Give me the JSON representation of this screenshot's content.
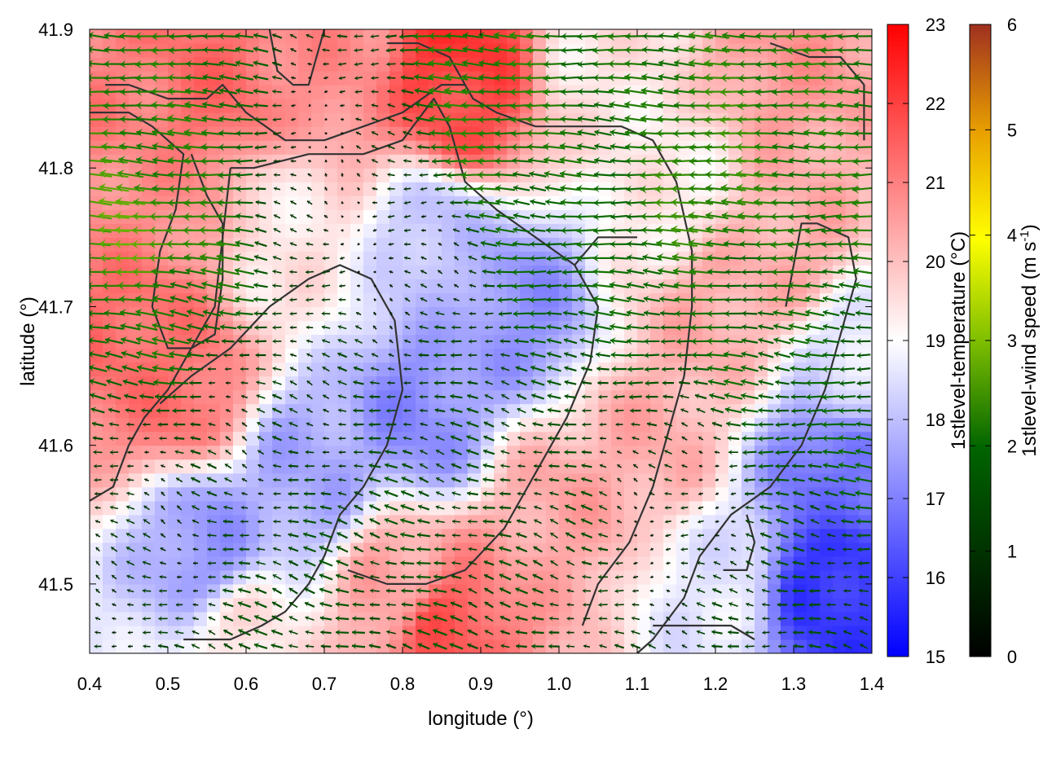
{
  "chart_data": {
    "type": "heatmap",
    "xlabel": "longitude (°)",
    "ylabel": "latitude (°)",
    "xlim": [
      0.4,
      1.4
    ],
    "ylim": [
      41.45,
      41.9
    ],
    "xticks": [
      "0.4",
      "0.5",
      "0.6",
      "0.7",
      "0.8",
      "0.9",
      "1.0",
      "1.1",
      "1.2",
      "1.3",
      "1.4"
    ],
    "yticks": [
      "41.5",
      "41.6",
      "41.7",
      "41.8",
      "41.9"
    ],
    "temperature_colorbar": {
      "label": "1stlevel-temperature (°C)",
      "range": [
        15,
        23
      ],
      "ticks": [
        "15",
        "16",
        "17",
        "18",
        "19",
        "20",
        "21",
        "22",
        "23"
      ],
      "colors": [
        "#0000ff",
        "#ffffff",
        "#ff0000"
      ]
    },
    "wind_colorbar": {
      "label_main": "1stlevel-wind speed (m s",
      "label_sup": "-1",
      "label_end": ")",
      "range": [
        0,
        6
      ],
      "ticks": [
        "0",
        "1",
        "2",
        "3",
        "4",
        "5",
        "6"
      ],
      "colors": [
        "#000000",
        "#006400",
        "#7fbf00",
        "#ffff00",
        "#e8a000",
        "#a03020"
      ]
    },
    "temperature_field_anchors": [
      {
        "lon": 0.42,
        "lat": 41.86,
        "t": 21.0
      },
      {
        "lon": 0.55,
        "lat": 41.86,
        "t": 21.3
      },
      {
        "lon": 0.72,
        "lat": 41.88,
        "t": 20.8
      },
      {
        "lon": 0.87,
        "lat": 41.88,
        "t": 22.2
      },
      {
        "lon": 0.88,
        "lat": 41.85,
        "t": 21.8
      },
      {
        "lon": 1.05,
        "lat": 41.87,
        "t": 19.4
      },
      {
        "lon": 1.3,
        "lat": 41.88,
        "t": 20.6
      },
      {
        "lon": 0.48,
        "lat": 41.78,
        "t": 20.8
      },
      {
        "lon": 0.45,
        "lat": 41.68,
        "t": 21.3
      },
      {
        "lon": 0.52,
        "lat": 41.64,
        "t": 21.2
      },
      {
        "lon": 0.65,
        "lat": 41.75,
        "t": 19.4
      },
      {
        "lon": 0.85,
        "lat": 41.75,
        "t": 18.0
      },
      {
        "lon": 0.95,
        "lat": 41.7,
        "t": 17.3
      },
      {
        "lon": 0.82,
        "lat": 41.62,
        "t": 17.2
      },
      {
        "lon": 0.68,
        "lat": 41.58,
        "t": 17.6
      },
      {
        "lon": 0.55,
        "lat": 41.53,
        "t": 17.4
      },
      {
        "lon": 0.8,
        "lat": 41.5,
        "t": 20.4
      },
      {
        "lon": 0.85,
        "lat": 41.47,
        "t": 21.6
      },
      {
        "lon": 1.0,
        "lat": 41.55,
        "t": 20.4
      },
      {
        "lon": 1.12,
        "lat": 41.6,
        "t": 20.3
      },
      {
        "lon": 1.2,
        "lat": 41.7,
        "t": 20.3
      },
      {
        "lon": 1.15,
        "lat": 41.78,
        "t": 19.3
      },
      {
        "lon": 1.3,
        "lat": 41.75,
        "t": 20.3
      },
      {
        "lon": 1.35,
        "lat": 41.58,
        "t": 16.8
      },
      {
        "lon": 1.35,
        "lat": 41.5,
        "t": 15.8
      },
      {
        "lon": 1.2,
        "lat": 41.5,
        "t": 18.6
      },
      {
        "lon": 0.6,
        "lat": 41.46,
        "t": 19.4
      },
      {
        "lon": 1.38,
        "lat": 41.66,
        "t": 18.5
      }
    ],
    "wind_field_anchors": [
      {
        "lon": 0.48,
        "lat": 41.75,
        "u": -3.0,
        "v": 0.2
      },
      {
        "lon": 0.53,
        "lat": 41.8,
        "u": -2.2,
        "v": 0.1
      },
      {
        "lon": 0.5,
        "lat": 41.7,
        "u": -2.0,
        "v": 0.3
      },
      {
        "lon": 0.92,
        "lat": 41.84,
        "u": -2.3,
        "v": 0.1
      },
      {
        "lon": 1.05,
        "lat": 41.82,
        "u": -2.0,
        "v": 0.1
      },
      {
        "lon": 1.2,
        "lat": 41.79,
        "u": -2.6,
        "v": 0.1
      },
      {
        "lon": 1.3,
        "lat": 41.78,
        "u": -2.2,
        "v": 0.0
      },
      {
        "lon": 1.0,
        "lat": 41.76,
        "u": -1.8,
        "v": 0.1
      },
      {
        "lon": 1.25,
        "lat": 41.7,
        "u": -1.8,
        "v": 0.2
      },
      {
        "lon": 1.35,
        "lat": 41.62,
        "u": -1.6,
        "v": 0.1
      },
      {
        "lon": 0.85,
        "lat": 41.65,
        "u": -1.0,
        "v": 0.2
      },
      {
        "lon": 0.95,
        "lat": 41.55,
        "u": -1.0,
        "v": 0.3
      },
      {
        "lon": 0.8,
        "lat": 41.5,
        "u": -1.2,
        "v": 0.3
      },
      {
        "lon": 0.7,
        "lat": 41.48,
        "u": -1.1,
        "v": 0.3
      },
      {
        "lon": 0.6,
        "lat": 41.62,
        "u": -0.7,
        "v": 0.2
      },
      {
        "lon": 0.7,
        "lat": 41.8,
        "u": -0.3,
        "v": 0.1
      },
      {
        "lon": 0.8,
        "lat": 41.72,
        "u": -0.4,
        "v": 0.1
      },
      {
        "lon": 1.15,
        "lat": 41.55,
        "u": -0.5,
        "v": 0.1
      },
      {
        "lon": 1.3,
        "lat": 41.5,
        "u": -1.0,
        "v": 0.2
      },
      {
        "lon": 0.45,
        "lat": 41.55,
        "u": -0.6,
        "v": 0.2
      }
    ],
    "contour_lines": [
      [
        [
          0.63,
          41.9
        ],
        [
          0.64,
          41.87
        ],
        [
          0.66,
          41.86
        ],
        [
          0.68,
          41.86
        ],
        [
          0.69,
          41.88
        ],
        [
          0.7,
          41.9
        ]
      ],
      [
        [
          0.42,
          41.86
        ],
        [
          0.45,
          41.86
        ],
        [
          0.5,
          41.85
        ],
        [
          0.55,
          41.85
        ],
        [
          0.57,
          41.86
        ],
        [
          0.6,
          41.84
        ],
        [
          0.65,
          41.82
        ],
        [
          0.7,
          41.82
        ],
        [
          0.75,
          41.83
        ],
        [
          0.8,
          41.84
        ],
        [
          0.85,
          41.86
        ],
        [
          0.88,
          41.86
        ]
      ],
      [
        [
          0.4,
          41.84
        ],
        [
          0.45,
          41.84
        ],
        [
          0.48,
          41.83
        ],
        [
          0.52,
          41.81
        ],
        [
          0.51,
          41.77
        ],
        [
          0.49,
          41.74
        ],
        [
          0.48,
          41.7
        ],
        [
          0.5,
          41.67
        ],
        [
          0.53,
          41.67
        ],
        [
          0.56,
          41.68
        ],
        [
          0.57,
          41.72
        ],
        [
          0.57,
          41.76
        ],
        [
          0.55,
          41.78
        ],
        [
          0.53,
          41.81
        ]
      ],
      [
        [
          0.78,
          41.89
        ],
        [
          0.82,
          41.89
        ],
        [
          0.86,
          41.88
        ],
        [
          0.89,
          41.85
        ],
        [
          0.92,
          41.84
        ],
        [
          0.97,
          41.83
        ],
        [
          1.03,
          41.83
        ],
        [
          1.08,
          41.83
        ],
        [
          1.12,
          41.82
        ],
        [
          1.15,
          41.79
        ],
        [
          1.17,
          41.74
        ],
        [
          1.17,
          41.7
        ],
        [
          1.16,
          41.65
        ],
        [
          1.14,
          41.61
        ],
        [
          1.12,
          41.57
        ],
        [
          1.09,
          41.53
        ],
        [
          1.05,
          41.5
        ],
        [
          1.03,
          41.47
        ]
      ],
      [
        [
          0.58,
          41.8
        ],
        [
          0.61,
          41.8
        ],
        [
          0.68,
          41.81
        ],
        [
          0.75,
          41.81
        ],
        [
          0.8,
          41.82
        ],
        [
          0.84,
          41.85
        ],
        [
          0.86,
          41.83
        ],
        [
          0.88,
          41.79
        ],
        [
          0.92,
          41.77
        ],
        [
          0.97,
          41.75
        ],
        [
          1.02,
          41.73
        ],
        [
          1.05,
          41.7
        ],
        [
          1.04,
          41.66
        ],
        [
          1.01,
          41.62
        ],
        [
          0.97,
          41.58
        ],
        [
          0.93,
          41.54
        ],
        [
          0.88,
          41.51
        ],
        [
          0.83,
          41.5
        ],
        [
          0.78,
          41.5
        ],
        [
          0.73,
          41.51
        ]
      ],
      [
        [
          0.58,
          41.8
        ],
        [
          0.57,
          41.75
        ],
        [
          0.56,
          41.7
        ],
        [
          0.53,
          41.67
        ],
        [
          0.5,
          41.64
        ],
        [
          0.47,
          41.62
        ],
        [
          0.45,
          41.6
        ],
        [
          0.43,
          41.57
        ],
        [
          0.4,
          41.56
        ]
      ],
      [
        [
          0.49,
          41.63
        ],
        [
          0.53,
          41.65
        ],
        [
          0.58,
          41.67
        ],
        [
          0.63,
          41.7
        ],
        [
          0.68,
          41.72
        ],
        [
          0.72,
          41.73
        ],
        [
          0.76,
          41.72
        ],
        [
          0.79,
          41.69
        ],
        [
          0.8,
          41.64
        ],
        [
          0.78,
          41.6
        ],
        [
          0.75,
          41.57
        ],
        [
          0.72,
          41.55
        ],
        [
          0.7,
          41.52
        ],
        [
          0.68,
          41.5
        ],
        [
          0.65,
          41.48
        ],
        [
          0.62,
          41.47
        ],
        [
          0.58,
          41.46
        ],
        [
          0.52,
          41.46
        ]
      ],
      [
        [
          1.02,
          41.73
        ],
        [
          1.05,
          41.75
        ],
        [
          1.08,
          41.75
        ],
        [
          1.1,
          41.75
        ]
      ],
      [
        [
          1.27,
          41.89
        ],
        [
          1.32,
          41.88
        ],
        [
          1.36,
          41.88
        ],
        [
          1.39,
          41.86
        ],
        [
          1.39,
          41.82
        ]
      ],
      [
        [
          1.29,
          41.7
        ],
        [
          1.3,
          41.73
        ],
        [
          1.31,
          41.76
        ],
        [
          1.33,
          41.76
        ],
        [
          1.37,
          41.75
        ],
        [
          1.38,
          41.72
        ],
        [
          1.36,
          41.68
        ],
        [
          1.34,
          41.64
        ],
        [
          1.31,
          41.6
        ],
        [
          1.27,
          41.57
        ],
        [
          1.22,
          41.55
        ],
        [
          1.18,
          41.52
        ],
        [
          1.16,
          41.49
        ],
        [
          1.12,
          41.46
        ],
        [
          1.1,
          41.45
        ]
      ],
      [
        [
          1.21,
          41.51
        ],
        [
          1.24,
          41.51
        ],
        [
          1.25,
          41.53
        ],
        [
          1.24,
          41.55
        ]
      ],
      [
        [
          1.12,
          41.47
        ],
        [
          1.18,
          41.47
        ],
        [
          1.22,
          41.47
        ],
        [
          1.25,
          41.46
        ]
      ]
    ]
  }
}
